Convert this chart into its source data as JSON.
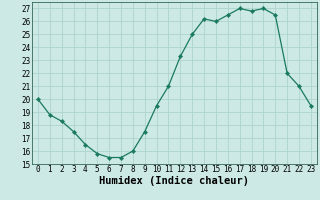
{
  "x": [
    0,
    1,
    2,
    3,
    4,
    5,
    6,
    7,
    8,
    9,
    10,
    11,
    12,
    13,
    14,
    15,
    16,
    17,
    18,
    19,
    20,
    21,
    22,
    23
  ],
  "y": [
    20.0,
    18.8,
    18.3,
    17.5,
    16.5,
    15.8,
    15.5,
    15.5,
    16.0,
    17.5,
    19.5,
    21.0,
    23.3,
    25.0,
    26.2,
    26.0,
    26.5,
    27.0,
    26.8,
    27.0,
    26.5,
    22.0,
    21.0,
    19.5
  ],
  "line_color": "#1a7a5e",
  "marker": "D",
  "marker_size": 2.2,
  "bg_color": "#cce9e5",
  "grid_color": "#aed4cf",
  "xlabel": "Humidex (Indice chaleur)",
  "xlim": [
    -0.5,
    23.5
  ],
  "ylim": [
    15,
    27.5
  ],
  "yticks": [
    15,
    16,
    17,
    18,
    19,
    20,
    21,
    22,
    23,
    24,
    25,
    26,
    27
  ],
  "xticks": [
    0,
    1,
    2,
    3,
    4,
    5,
    6,
    7,
    8,
    9,
    10,
    11,
    12,
    13,
    14,
    15,
    16,
    17,
    18,
    19,
    20,
    21,
    22,
    23
  ],
  "tick_fontsize": 5.5,
  "xlabel_fontsize": 7.5,
  "spine_color": "#336655"
}
